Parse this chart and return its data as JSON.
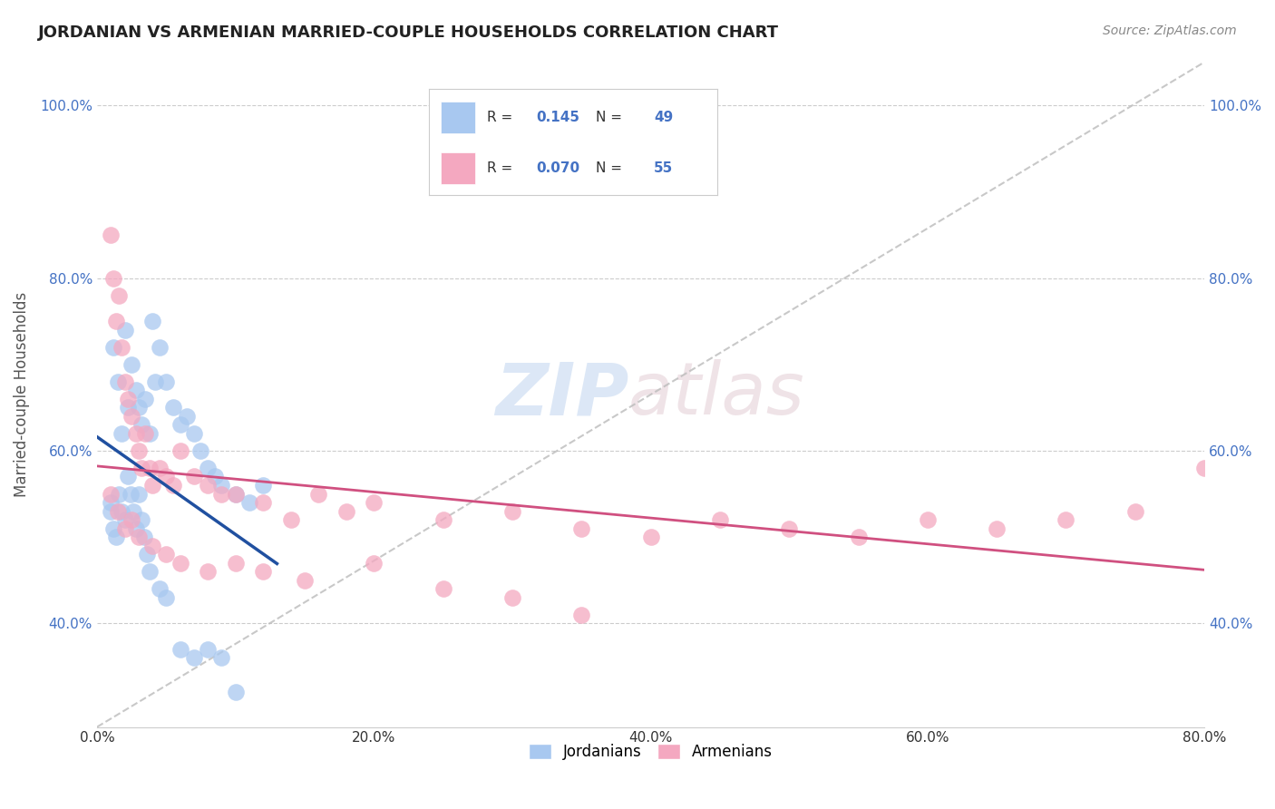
{
  "title": "JORDANIAN VS ARMENIAN MARRIED-COUPLE HOUSEHOLDS CORRELATION CHART",
  "source": "Source: ZipAtlas.com",
  "ylabel_label": "Married-couple Households",
  "R_jordanian": 0.145,
  "N_jordanian": 49,
  "R_armenian": 0.07,
  "N_armenian": 55,
  "jordanian_color": "#A8C8F0",
  "armenian_color": "#F4A8C0",
  "jordanian_line_color": "#2050A0",
  "armenian_line_color": "#D05080",
  "diagonal_color": "#BBBBBB",
  "background_color": "#FFFFFF",
  "jordanian_x": [
    1.0,
    1.2,
    1.5,
    1.8,
    2.0,
    2.2,
    2.5,
    2.8,
    3.0,
    3.2,
    3.5,
    3.8,
    4.0,
    4.2,
    4.5,
    5.0,
    5.5,
    6.0,
    6.5,
    7.0,
    7.5,
    8.0,
    8.5,
    9.0,
    10.0,
    11.0,
    12.0,
    1.0,
    1.2,
    1.4,
    1.6,
    1.8,
    2.0,
    2.2,
    2.4,
    2.6,
    2.8,
    3.0,
    3.2,
    3.4,
    3.6,
    3.8,
    4.5,
    5.0,
    6.0,
    7.0,
    8.0,
    9.0,
    10.0
  ],
  "jordanian_y": [
    54.0,
    72.0,
    68.0,
    62.0,
    74.0,
    65.0,
    70.0,
    67.0,
    65.0,
    63.0,
    66.0,
    62.0,
    75.0,
    68.0,
    72.0,
    68.0,
    65.0,
    63.0,
    64.0,
    62.0,
    60.0,
    58.0,
    57.0,
    56.0,
    55.0,
    54.0,
    56.0,
    53.0,
    51.0,
    50.0,
    55.0,
    53.0,
    52.0,
    57.0,
    55.0,
    53.0,
    51.0,
    55.0,
    52.0,
    50.0,
    48.0,
    46.0,
    44.0,
    43.0,
    37.0,
    36.0,
    37.0,
    36.0,
    32.0
  ],
  "armenian_x": [
    1.0,
    1.2,
    1.4,
    1.6,
    1.8,
    2.0,
    2.2,
    2.5,
    2.8,
    3.0,
    3.2,
    3.5,
    3.8,
    4.0,
    4.5,
    5.0,
    5.5,
    6.0,
    7.0,
    8.0,
    9.0,
    10.0,
    12.0,
    14.0,
    16.0,
    18.0,
    20.0,
    25.0,
    30.0,
    35.0,
    40.0,
    45.0,
    50.0,
    55.0,
    60.0,
    65.0,
    70.0,
    75.0,
    80.0,
    1.0,
    1.5,
    2.0,
    2.5,
    3.0,
    4.0,
    5.0,
    6.0,
    8.0,
    10.0,
    12.0,
    15.0,
    20.0,
    25.0,
    30.0,
    35.0
  ],
  "armenian_y": [
    85.0,
    80.0,
    75.0,
    78.0,
    72.0,
    68.0,
    66.0,
    64.0,
    62.0,
    60.0,
    58.0,
    62.0,
    58.0,
    56.0,
    58.0,
    57.0,
    56.0,
    60.0,
    57.0,
    56.0,
    55.0,
    55.0,
    54.0,
    52.0,
    55.0,
    53.0,
    54.0,
    52.0,
    53.0,
    51.0,
    50.0,
    52.0,
    51.0,
    50.0,
    52.0,
    51.0,
    52.0,
    53.0,
    58.0,
    55.0,
    53.0,
    51.0,
    52.0,
    50.0,
    49.0,
    48.0,
    47.0,
    46.0,
    47.0,
    46.0,
    45.0,
    47.0,
    44.0,
    43.0,
    41.0
  ],
  "xlim": [
    0.0,
    80.0
  ],
  "ylim": [
    28.0,
    105.0
  ],
  "xtick_vals": [
    0.0,
    20.0,
    40.0,
    60.0,
    80.0
  ],
  "ytick_vals": [
    40.0,
    60.0,
    80.0,
    100.0
  ],
  "title_fontsize": 13,
  "axis_fontsize": 11,
  "legend_fontsize": 12
}
